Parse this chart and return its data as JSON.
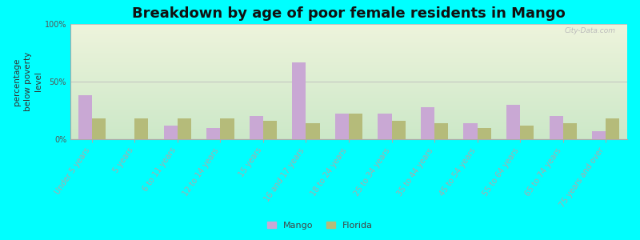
{
  "title": "Breakdown by age of poor female residents in Mango",
  "ylabel": "percentage\nbelow poverty\nlevel",
  "categories": [
    "Under 5 years",
    "5 years",
    "6 to 11 years",
    "12 to 14 years",
    "15 years",
    "16 and 17 years",
    "18 to 24 years",
    "25 to 34 years",
    "35 to 44 years",
    "45 to 54 years",
    "55 to 64 years",
    "65 to 74 years",
    "75 years and over"
  ],
  "mango_values": [
    38,
    0,
    12,
    10,
    20,
    67,
    22,
    22,
    28,
    14,
    30,
    20,
    7
  ],
  "florida_values": [
    18,
    18,
    18,
    18,
    16,
    14,
    22,
    16,
    14,
    10,
    12,
    14,
    18
  ],
  "mango_color": "#c9a8d4",
  "florida_color": "#b5bb7a",
  "background_color": "#00ffff",
  "plot_bg_top": "#cce8c8",
  "plot_bg_bottom": "#eef4dc",
  "ylim": [
    0,
    100
  ],
  "ytick_labels": [
    "0%",
    "50%",
    "100%"
  ],
  "legend_mango": "Mango",
  "legend_florida": "Florida",
  "title_fontsize": 13,
  "axis_label_fontsize": 7.5,
  "tick_label_fontsize": 7,
  "watermark": "City-Data.com"
}
